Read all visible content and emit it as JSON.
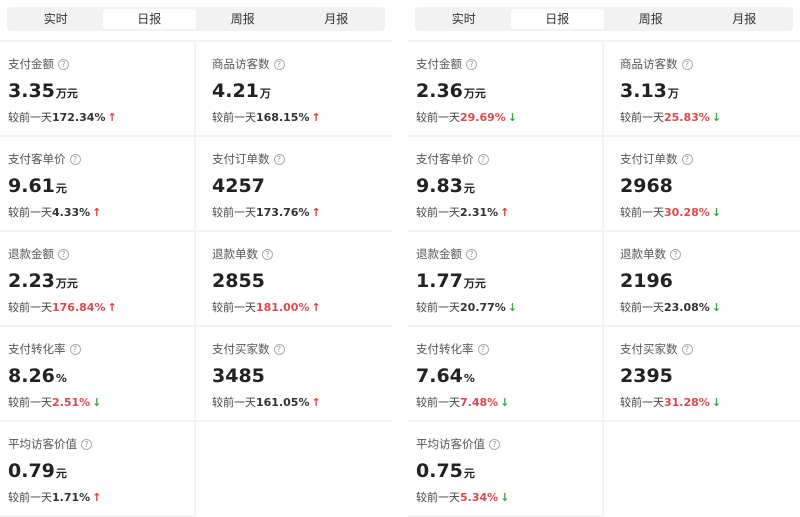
{
  "tabs": [
    "实时",
    "日报",
    "周报",
    "月报"
  ],
  "active_tab": 1,
  "compare_prefix": "较前一天",
  "colors": {
    "up": "#e0403c",
    "down": "#3aa64a",
    "highlight": "#e0484f"
  },
  "panels": [
    {
      "metrics": [
        {
          "label": "支付金额",
          "value": "3.35",
          "unit": "万元",
          "change": "172.34%",
          "dir": "up",
          "hl": false
        },
        {
          "label": "商品访客数",
          "value": "4.21",
          "unit": "万",
          "change": "168.15%",
          "dir": "up",
          "hl": false
        },
        {
          "label": "支付客单价",
          "value": "9.61",
          "unit": "元",
          "change": "4.33%",
          "dir": "up",
          "hl": false
        },
        {
          "label": "支付订单数",
          "value": "4257",
          "unit": "",
          "change": "173.76%",
          "dir": "up",
          "hl": false
        },
        {
          "label": "退款金额",
          "value": "2.23",
          "unit": "万元",
          "change": "176.84%",
          "dir": "up",
          "hl": true
        },
        {
          "label": "退款单数",
          "value": "2855",
          "unit": "",
          "change": "181.00%",
          "dir": "up",
          "hl": true
        },
        {
          "label": "支付转化率",
          "value": "8.26",
          "unit": "%",
          "change": "2.51%",
          "dir": "down",
          "hl": true
        },
        {
          "label": "支付买家数",
          "value": "3485",
          "unit": "",
          "change": "161.05%",
          "dir": "up",
          "hl": false
        },
        {
          "label": "平均访客价值",
          "value": "0.79",
          "unit": "元",
          "change": "1.71%",
          "dir": "up",
          "hl": false
        }
      ]
    },
    {
      "metrics": [
        {
          "label": "支付金额",
          "value": "2.36",
          "unit": "万元",
          "change": "29.69%",
          "dir": "down",
          "hl": true
        },
        {
          "label": "商品访客数",
          "value": "3.13",
          "unit": "万",
          "change": "25.83%",
          "dir": "down",
          "hl": true
        },
        {
          "label": "支付客单价",
          "value": "9.83",
          "unit": "元",
          "change": "2.31%",
          "dir": "up",
          "hl": false
        },
        {
          "label": "支付订单数",
          "value": "2968",
          "unit": "",
          "change": "30.28%",
          "dir": "down",
          "hl": true
        },
        {
          "label": "退款金额",
          "value": "1.77",
          "unit": "万元",
          "change": "20.77%",
          "dir": "down",
          "hl": false
        },
        {
          "label": "退款单数",
          "value": "2196",
          "unit": "",
          "change": "23.08%",
          "dir": "down",
          "hl": false
        },
        {
          "label": "支付转化率",
          "value": "7.64",
          "unit": "%",
          "change": "7.48%",
          "dir": "down",
          "hl": true
        },
        {
          "label": "支付买家数",
          "value": "2395",
          "unit": "",
          "change": "31.28%",
          "dir": "down",
          "hl": true
        },
        {
          "label": "平均访客价值",
          "value": "0.75",
          "unit": "元",
          "change": "5.34%",
          "dir": "down",
          "hl": true
        }
      ]
    }
  ]
}
